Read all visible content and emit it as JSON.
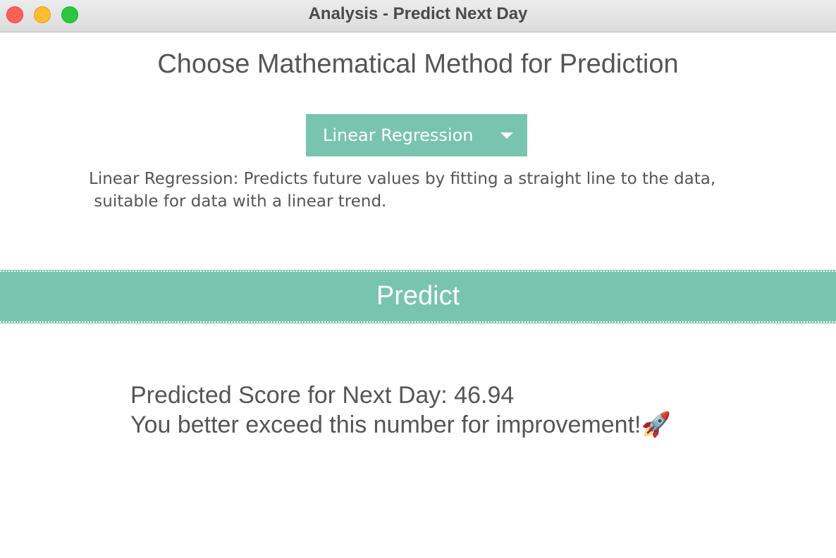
{
  "window": {
    "title": "Analysis - Predict Next Day"
  },
  "heading": "Choose Mathematical Method for Prediction",
  "method_dropdown": {
    "selected": "Linear Regression"
  },
  "description": {
    "line1": "Linear Regression: Predicts future values by fitting a straight line to the data,",
    "line2": " suitable for data with a linear trend."
  },
  "predict_button": {
    "label": "Predict"
  },
  "result": {
    "prediction_line": "Predicted Score for Next Day: 46.94",
    "advice_line": "You better exceed this number for improvement!",
    "emoji": "🚀"
  },
  "icons": {
    "dropdown": "chevron-down-icon",
    "result_emoji": "rocket-icon"
  },
  "colors": {
    "accent": "#79c4ae",
    "text": "#555555",
    "close": "#ff5f57",
    "minimize": "#febc2e",
    "zoom": "#28c840"
  }
}
